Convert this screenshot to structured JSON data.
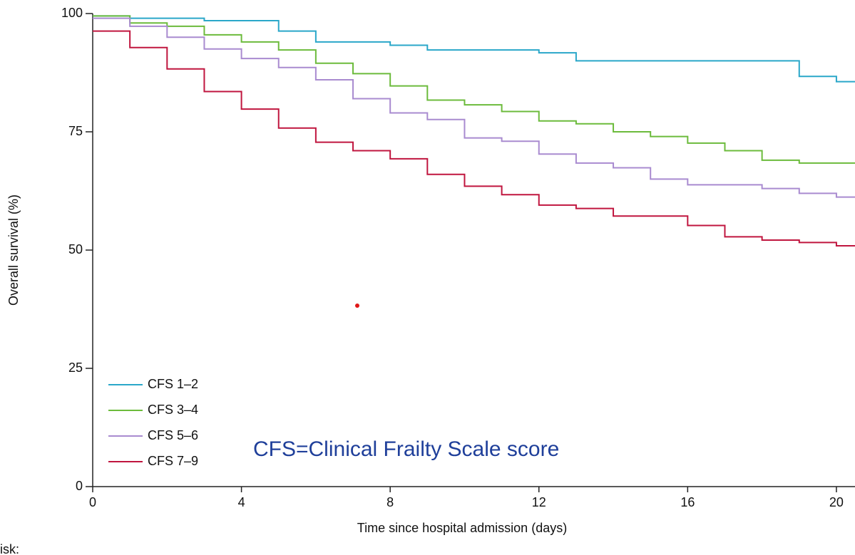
{
  "chart_data": {
    "type": "step",
    "xlabel": "Time since hospital admission (days)",
    "ylabel": "Overall survival (%)",
    "annotation": "CFS=Clinical Frailty Scale score",
    "footer": "risk:",
    "xlim": [
      0,
      20.5
    ],
    "ylim": [
      0,
      100
    ],
    "xticks": [
      0,
      4,
      8,
      12,
      16,
      20
    ],
    "yticks": [
      0,
      25,
      50,
      75,
      100
    ],
    "legend": "lower left",
    "series": [
      {
        "name": "CFS 1–2",
        "color": "#2aa7c9",
        "x": [
          0,
          1,
          3,
          5,
          6,
          8,
          9,
          12,
          13,
          19,
          20
        ],
        "values": [
          99.5,
          99,
          98.5,
          96.3,
          94,
          93.3,
          92.3,
          91.7,
          90,
          86.7,
          85.6
        ]
      },
      {
        "name": "CFS 3–4",
        "color": "#6cbb3c",
        "x": [
          0,
          1,
          2,
          3,
          4,
          5,
          6,
          7,
          8,
          9,
          10,
          11,
          12,
          13,
          14,
          15,
          16,
          17,
          18,
          19
        ],
        "values": [
          99.5,
          98,
          97.3,
          95.5,
          94,
          92.3,
          89.5,
          87.3,
          84.7,
          81.7,
          80.7,
          79.3,
          77.3,
          76.7,
          75,
          74,
          72.6,
          71,
          69,
          68.4
        ]
      },
      {
        "name": "CFS 5–6",
        "color": "#a98bd0",
        "x": [
          0,
          1,
          2,
          3,
          4,
          5,
          6,
          7,
          8,
          9,
          10,
          11,
          12,
          13,
          14,
          15,
          16,
          18,
          19,
          20
        ],
        "values": [
          99,
          97.3,
          95,
          92.5,
          90.5,
          88.6,
          86,
          82,
          79,
          77.6,
          73.7,
          73,
          70.3,
          68.4,
          67.4,
          65,
          63.8,
          63,
          62,
          61.2
        ]
      },
      {
        "name": "CFS 7–9",
        "color": "#c0163f",
        "x": [
          0,
          1,
          2,
          3,
          4,
          5,
          6,
          7,
          8,
          9,
          10,
          11,
          12,
          13,
          14,
          16,
          17,
          18,
          19,
          20
        ],
        "values": [
          96.3,
          92.8,
          88.3,
          83.5,
          79.8,
          75.8,
          72.8,
          71,
          69.3,
          66,
          63.5,
          61.7,
          59.5,
          58.8,
          57.2,
          55.2,
          52.8,
          52.1,
          51.6,
          50.9
        ]
      }
    ]
  }
}
